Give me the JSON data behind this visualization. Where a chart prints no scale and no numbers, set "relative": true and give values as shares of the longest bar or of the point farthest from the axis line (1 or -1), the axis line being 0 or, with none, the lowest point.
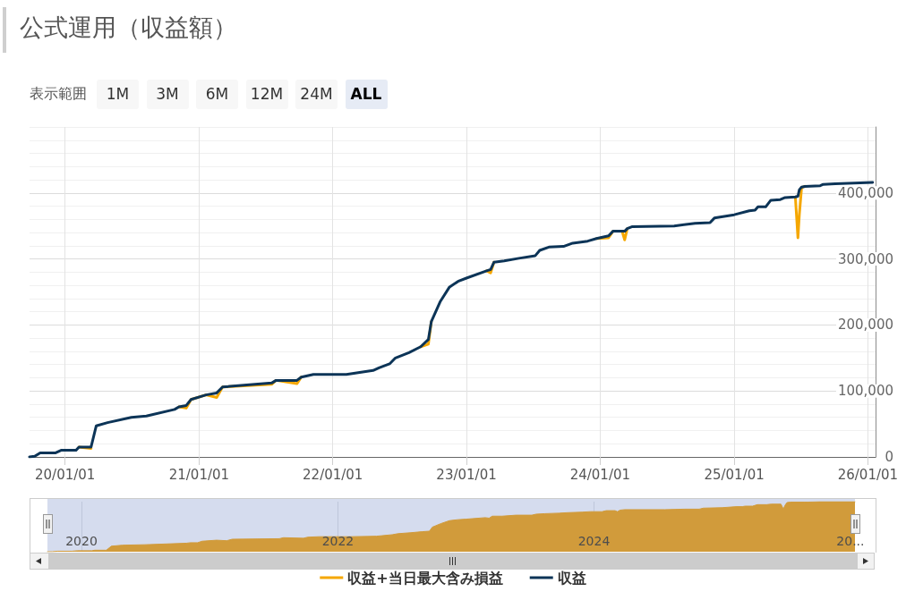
{
  "chart_data": [
    {
      "type": "line",
      "title": "公式運用（収益額）",
      "annotations": [
        "表示範囲",
        "1M",
        "3M",
        "6M",
        "12M",
        "24M",
        "ALL"
      ],
      "x": [
        "2019-09-26",
        "2019-10-10",
        "2019-10-25",
        "2019-12-05",
        "2019-12-21",
        "2020-01-31",
        "2020-02-08",
        "2020-03-12",
        "2020-03-26",
        "2020-04-26",
        "2020-06-30",
        "2020-08-10",
        "2020-10-26",
        "2020-11-07",
        "2020-11-27",
        "2020-12-10",
        "2021-01-20",
        "2021-02-18",
        "2021-03-06",
        "2021-07-18",
        "2021-07-30",
        "2021-09-25",
        "2021-10-07",
        "2021-11-09",
        "2022-02-07",
        "2022-04-21",
        "2022-05-07",
        "2022-06-05",
        "2022-06-21",
        "2022-07-28",
        "2022-08-29",
        "2022-09-19",
        "2022-09-27",
        "2022-10-21",
        "2022-11-15",
        "2022-12-09",
        "2023-01-01",
        "2023-02-25",
        "2023-03-08",
        "2023-03-17",
        "2023-04-14",
        "2023-05-24",
        "2023-07-08",
        "2023-07-20",
        "2023-08-14",
        "2023-09-23",
        "2023-10-18",
        "2023-11-28",
        "2023-12-22",
        "2024-01-24",
        "2024-02-05",
        "2024-03-01",
        "2024-03-08",
        "2024-03-15",
        "2024-03-29",
        "2024-07-21",
        "2024-09-16",
        "2024-10-27",
        "2024-11-08",
        "2025-01-01",
        "2025-02-11",
        "2025-02-27",
        "2025-03-07",
        "2025-03-28",
        "2025-04-11",
        "2025-05-07",
        "2025-05-20",
        "2025-06-17",
        "2025-06-24",
        "2025-06-28",
        "2025-07-04",
        "2025-07-13",
        "2025-08-24",
        "2025-09-01",
        "2025-10-04",
        "2026-01-14"
      ],
      "series": [
        {
          "name": "収益+当日最大含み損益",
          "color": "#f5a700",
          "values": [
            null,
            null,
            null,
            null,
            null,
            null,
            15000,
            13000,
            null,
            null,
            null,
            null,
            null,
            76000,
            74000,
            87000,
            94000,
            90000,
            106000,
            110000,
            116000,
            111000,
            121000,
            null,
            null,
            null,
            null,
            null,
            null,
            null,
            167000,
            171000,
            205000,
            null,
            null,
            null,
            null,
            282000,
            279000,
            295000,
            null,
            null,
            null,
            null,
            null,
            null,
            null,
            null,
            331000,
            332000,
            342000,
            342000,
            329000,
            346000,
            null,
            null,
            null,
            null,
            null,
            null,
            null,
            null,
            null,
            null,
            null,
            null,
            null,
            394000,
            332000,
            368000,
            408000,
            410000,
            null,
            null,
            null,
            null
          ]
        },
        {
          "name": "収益",
          "color": "#0c3457",
          "values": [
            0,
            1000,
            6000,
            6000,
            10000,
            10000,
            15000,
            15000,
            47000,
            52000,
            60000,
            62000,
            72000,
            76000,
            78000,
            87000,
            94000,
            97000,
            106000,
            112000,
            116000,
            116000,
            121000,
            125000,
            125000,
            131000,
            135000,
            141000,
            150000,
            158000,
            167000,
            178000,
            205000,
            235000,
            257000,
            266000,
            271000,
            282000,
            284000,
            295000,
            297000,
            301000,
            305000,
            313000,
            318000,
            319000,
            324000,
            327000,
            331000,
            335000,
            342000,
            342000,
            342000,
            346000,
            349000,
            350000,
            354000,
            355000,
            362000,
            367000,
            373000,
            374000,
            379000,
            379000,
            389000,
            390000,
            393000,
            394000,
            395000,
            405000,
            409000,
            410000,
            411000,
            413000,
            414000,
            416000
          ]
        }
      ],
      "xlim": [
        "2019-09-26",
        "2026-01-22"
      ],
      "xticks": [
        {
          "value": "2020-01-01",
          "label": "20/01/01"
        },
        {
          "value": "2021-01-01",
          "label": "21/01/01"
        },
        {
          "value": "2022-01-01",
          "label": "22/01/01"
        },
        {
          "value": "2023-01-01",
          "label": "23/01/01"
        },
        {
          "value": "2024-01-01",
          "label": "24/01/01"
        },
        {
          "value": "2025-01-01",
          "label": "25/01/01"
        },
        {
          "value": "2026-01-01",
          "label": "26/01/01"
        }
      ],
      "ylim": [
        0,
        500000
      ],
      "yticks": [
        0,
        {
          "value": 20000,
          "label": null
        },
        {
          "value": 40000,
          "label": null
        },
        {
          "value": 60000,
          "label": null
        },
        {
          "value": 80000,
          "label": null
        },
        {
          "value": 100000,
          "label": "100,000"
        },
        {
          "value": 120000,
          "label": null
        },
        {
          "value": 140000,
          "label": null
        },
        {
          "value": 160000,
          "label": null
        },
        {
          "value": 180000,
          "label": null
        },
        {
          "value": 200000,
          "label": "200,000"
        },
        {
          "value": 220000,
          "label": null
        },
        {
          "value": 240000,
          "label": null
        },
        {
          "value": 260000,
          "label": null
        },
        {
          "value": 280000,
          "label": null
        },
        {
          "value": 300000,
          "label": "300,000"
        },
        {
          "value": 320000,
          "label": null
        },
        {
          "value": 340000,
          "label": null
        },
        {
          "value": 360000,
          "label": null
        },
        {
          "value": 380000,
          "label": null
        },
        {
          "value": 400000,
          "label": "400,000"
        },
        {
          "value": 420000,
          "label": null
        },
        {
          "value": 440000,
          "label": null
        },
        {
          "value": 460000,
          "label": null
        },
        {
          "value": 480000,
          "label": null
        },
        {
          "value": 500000,
          "label": null
        }
      ],
      "grid": true,
      "legend": "bottom"
    },
    {
      "type": "area",
      "relative": true,
      "color": "#d19b3b",
      "x": [
        "2019-09-26",
        "2019-10-10",
        "2019-10-25",
        "2019-12-05",
        "2019-12-21",
        "2020-01-31",
        "2020-02-08",
        "2020-03-12",
        "2020-03-26",
        "2020-04-26",
        "2020-06-30",
        "2020-08-10",
        "2020-10-26",
        "2020-11-07",
        "2020-11-27",
        "2020-12-10",
        "2021-01-20",
        "2021-02-18",
        "2021-03-06",
        "2021-07-18",
        "2021-07-30",
        "2021-09-25",
        "2021-10-07",
        "2021-11-09",
        "2022-02-07",
        "2022-04-21",
        "2022-05-07",
        "2022-06-05",
        "2022-06-21",
        "2022-07-28",
        "2022-08-29",
        "2022-09-19",
        "2022-09-27",
        "2022-10-21",
        "2022-11-15",
        "2022-12-09",
        "2023-01-01",
        "2023-02-25",
        "2023-03-08",
        "2023-03-17",
        "2023-04-14",
        "2023-05-24",
        "2023-07-08",
        "2023-07-20",
        "2023-08-14",
        "2023-09-23",
        "2023-10-18",
        "2023-11-28",
        "2023-12-22",
        "2024-01-24",
        "2024-02-05",
        "2024-03-01",
        "2024-03-08",
        "2024-03-15",
        "2024-03-29",
        "2024-07-21",
        "2024-09-16",
        "2024-10-27",
        "2024-11-08",
        "2025-01-01",
        "2025-02-11",
        "2025-02-27",
        "2025-03-07",
        "2025-03-28",
        "2025-04-11",
        "2025-05-07",
        "2025-05-20",
        "2025-06-17",
        "2025-06-24",
        "2025-06-28",
        "2025-07-04",
        "2025-07-13",
        "2025-08-24",
        "2025-09-01",
        "2025-10-04",
        "2026-01-14"
      ],
      "values": [
        0,
        0,
        0.01,
        0.01,
        0.02,
        0.02,
        0.03,
        0.03,
        0.11,
        0.13,
        0.14,
        0.15,
        0.17,
        0.18,
        0.18,
        0.21,
        0.23,
        0.22,
        0.25,
        0.26,
        0.28,
        0.27,
        0.29,
        0.3,
        0.3,
        0.31,
        0.32,
        0.34,
        0.36,
        0.38,
        0.4,
        0.41,
        0.49,
        0.56,
        0.62,
        0.64,
        0.65,
        0.68,
        0.67,
        0.71,
        0.71,
        0.73,
        0.73,
        0.75,
        0.76,
        0.77,
        0.78,
        0.79,
        0.8,
        0.8,
        0.82,
        0.82,
        0.8,
        0.83,
        0.84,
        0.84,
        0.85,
        0.85,
        0.87,
        0.88,
        0.9,
        0.9,
        0.91,
        0.91,
        0.94,
        0.94,
        0.95,
        0.95,
        0.85,
        0.92,
        0.98,
        0.99,
        0.99,
        0.99,
        1,
        1
      ],
      "xlim": [
        "2019-09-26",
        "2026-01-14"
      ],
      "xticks": [
        {
          "value": "2020-01-01",
          "label": "2020"
        },
        {
          "value": "2022-01-01",
          "label": "2022"
        },
        {
          "value": "2024-01-01",
          "label": "2024"
        },
        {
          "value": "2026-01-01",
          "label": "20..."
        }
      ],
      "grid": "x"
    }
  ]
}
